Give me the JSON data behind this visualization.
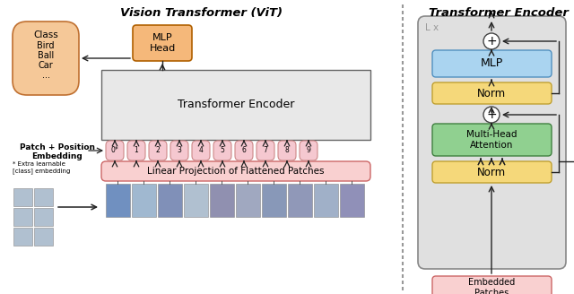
{
  "title_left": "Vision Transformer (ViT)",
  "title_right": "Transformer Encoder",
  "bg_color": "#ffffff",
  "colors": {
    "pink_box": "#f9d0d0",
    "orange_box": "#f5b87a",
    "blue_box": "#aad4f0",
    "green_box": "#90d090",
    "yellow_box": "#f5d87a",
    "embed_pill": "#f5c8d0",
    "class_fill": "#f5c898",
    "dashed_line": "#999999",
    "encoder_bg": "#e0e0e0",
    "transformer_bg": "#e8e8e8"
  },
  "patch_labels": [
    "0*",
    "1",
    "2",
    "3",
    "4",
    "5",
    "6",
    "7",
    "8",
    "9"
  ],
  "embed_patches_label": "Embedded\nPatches",
  "linear_proj_label": "Linear Projection of Flattened Patches",
  "transformer_encoder_label": "Transformer Encoder",
  "mlp_head_label": "MLP\nHead",
  "patch_pos_label": "Patch + Position\nEmbedding",
  "extra_label": "* Extra learnable\n[class] embedding"
}
